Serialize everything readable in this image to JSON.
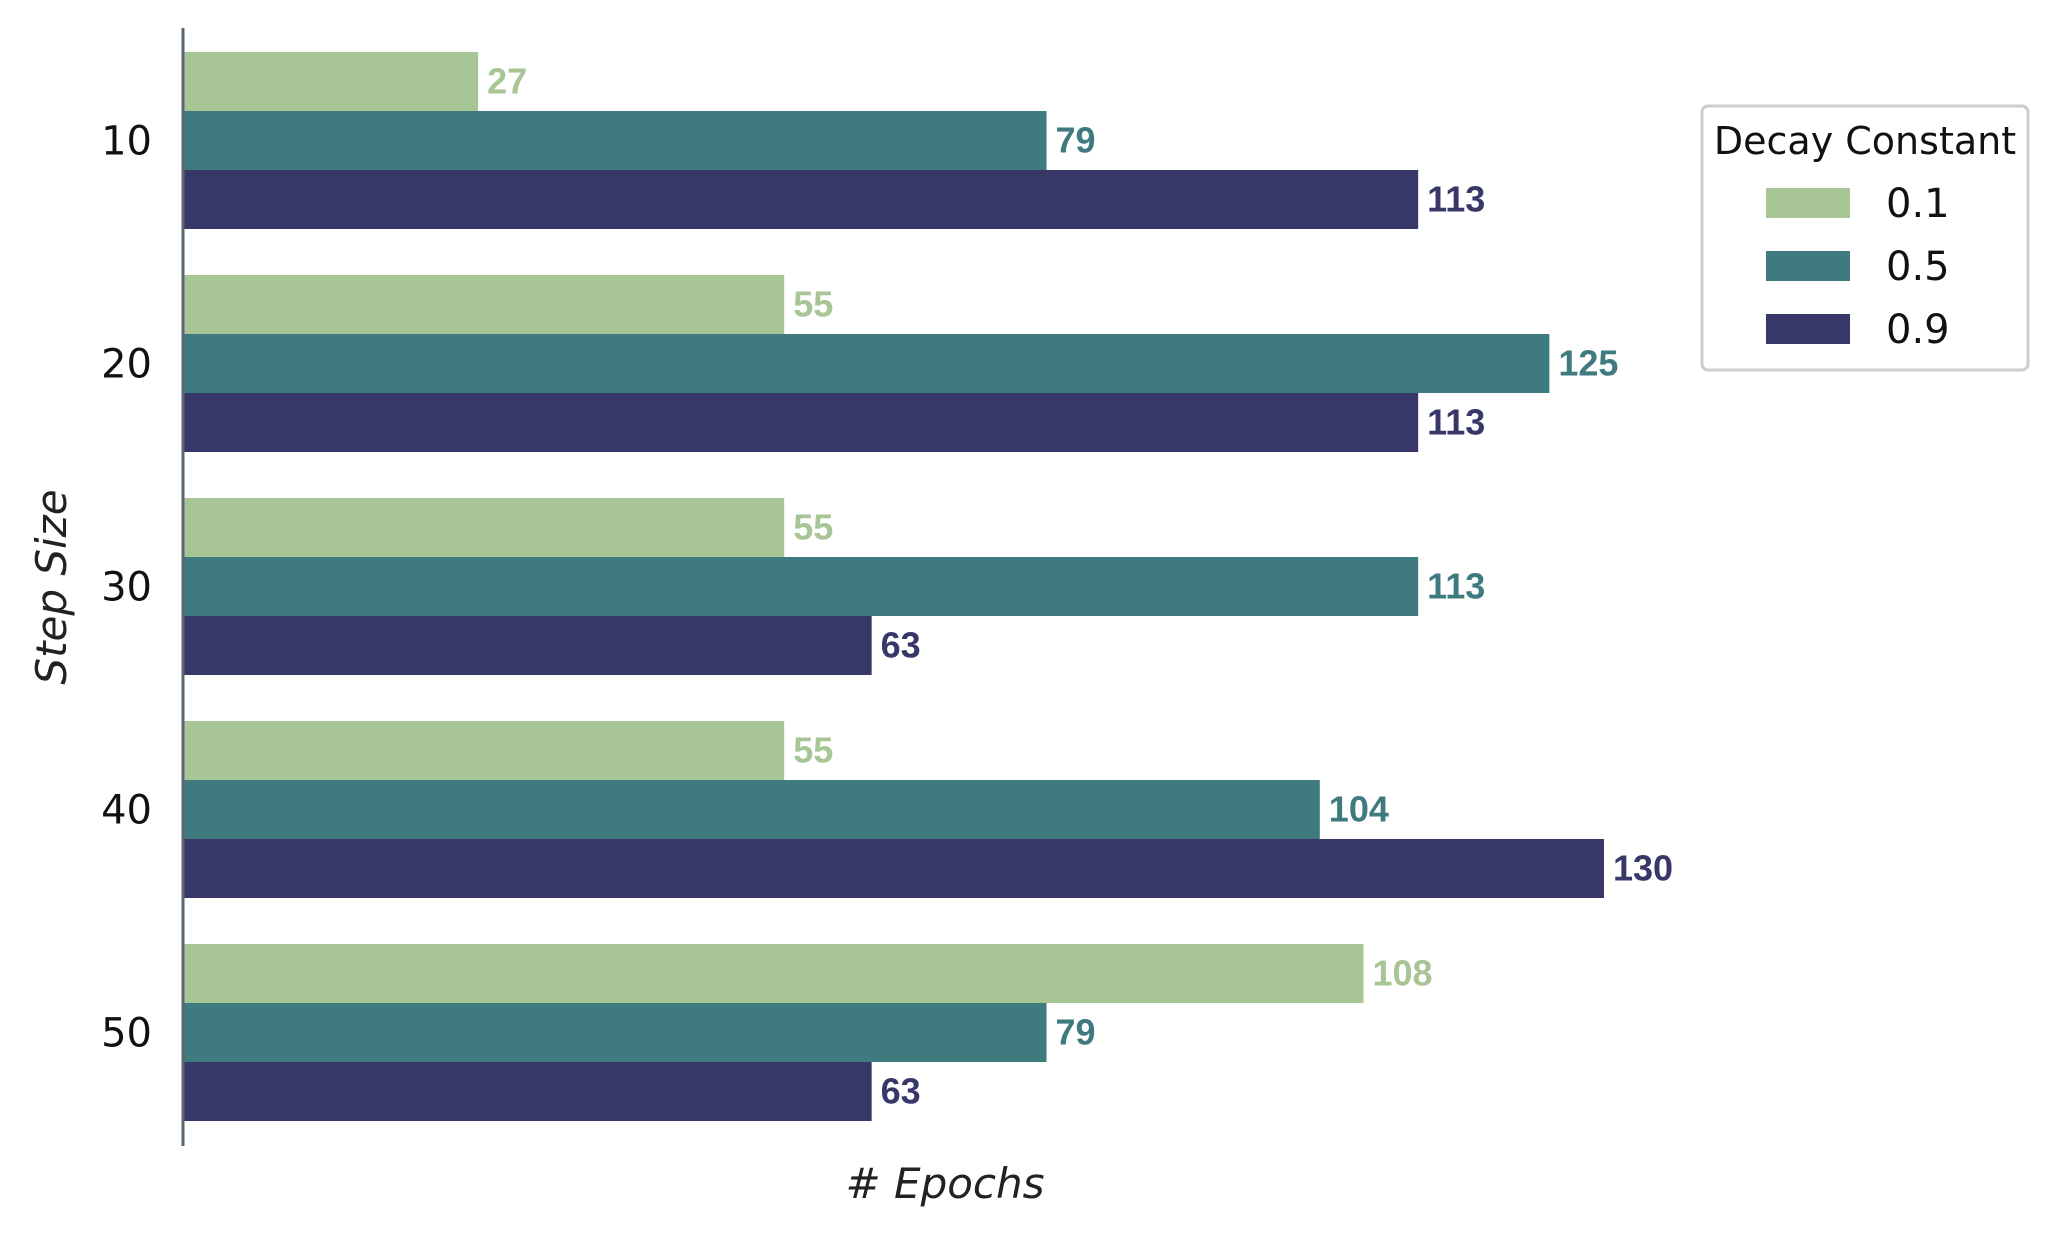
{
  "chart_data": {
    "type": "bar",
    "orientation": "horizontal",
    "categories": [
      "10",
      "20",
      "30",
      "40",
      "50"
    ],
    "series": [
      {
        "name": "0.1",
        "color": "#a8c596",
        "values": [
          27,
          55,
          55,
          55,
          108
        ]
      },
      {
        "name": "0.5",
        "color": "#3f7a7f",
        "values": [
          79,
          125,
          113,
          104,
          79
        ]
      },
      {
        "name": "0.9",
        "color": "#383868",
        "values": [
          113,
          113,
          63,
          130,
          63
        ]
      }
    ],
    "xlabel": "# Epochs",
    "ylabel": "Step Size",
    "xlim": [
      0,
      130
    ],
    "legend": {
      "title": "Decay Constant",
      "placement": "right-top"
    },
    "grid": false,
    "x_ticks_shown": false,
    "data_labels": true
  }
}
